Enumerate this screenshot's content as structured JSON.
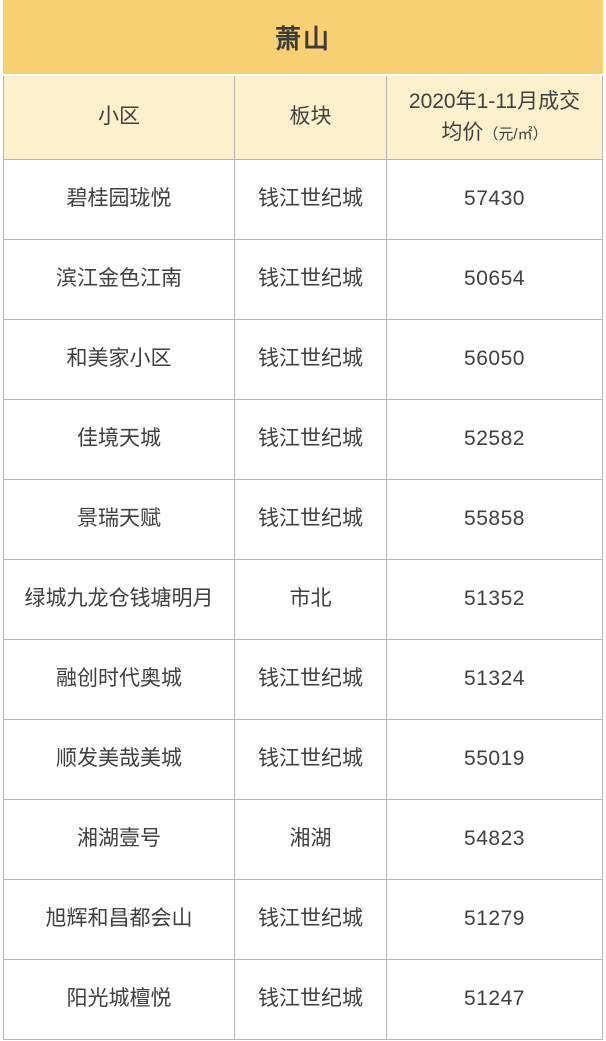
{
  "colors": {
    "title_band_bg": "#F7D073",
    "header_row_bg": "#FDF0CC",
    "row_bg": "#FFFFFF",
    "grid_border": "#B5B5B5",
    "text": "#404040"
  },
  "table": {
    "title": "萧山",
    "columns": {
      "community": "小区",
      "district": "板块",
      "price_label": "2020年1-11月成交均价",
      "price_unit": "（元/㎡）"
    },
    "rows": [
      {
        "community": "碧桂园珑悦",
        "district": "钱江世纪城",
        "price": "57430"
      },
      {
        "community": "滨江金色江南",
        "district": "钱江世纪城",
        "price": "50654"
      },
      {
        "community": "和美家小区",
        "district": "钱江世纪城",
        "price": "56050"
      },
      {
        "community": "佳境天城",
        "district": "钱江世纪城",
        "price": "52582"
      },
      {
        "community": "景瑞天赋",
        "district": "钱江世纪城",
        "price": "55858"
      },
      {
        "community": "绿城九龙仓钱塘明月",
        "district": "市北",
        "price": "51352"
      },
      {
        "community": "融创时代奥城",
        "district": "钱江世纪城",
        "price": "51324"
      },
      {
        "community": "顺发美哉美城",
        "district": "钱江世纪城",
        "price": "55019"
      },
      {
        "community": "湘湖壹号",
        "district": "湘湖",
        "price": "54823"
      },
      {
        "community": "旭辉和昌都会山",
        "district": "钱江世纪城",
        "price": "51279"
      },
      {
        "community": "阳光城檀悦",
        "district": "钱江世纪城",
        "price": "51247"
      }
    ]
  },
  "chart_data": {
    "type": "table",
    "title": "萧山",
    "columns": [
      "小区",
      "板块",
      "2020年1-11月成交均价（元/㎡）"
    ],
    "rows": [
      [
        "碧桂园珑悦",
        "钱江世纪城",
        57430
      ],
      [
        "滨江金色江南",
        "钱江世纪城",
        50654
      ],
      [
        "和美家小区",
        "钱江世纪城",
        56050
      ],
      [
        "佳境天城",
        "钱江世纪城",
        52582
      ],
      [
        "景瑞天赋",
        "钱江世纪城",
        55858
      ],
      [
        "绿城九龙仓钱塘明月",
        "市北",
        51352
      ],
      [
        "融创时代奥城",
        "钱江世纪城",
        51324
      ],
      [
        "顺发美哉美城",
        "钱江世纪城",
        55019
      ],
      [
        "湘湖壹号",
        "湘湖",
        54823
      ],
      [
        "旭辉和昌都会山",
        "钱江世纪城",
        51279
      ],
      [
        "阳光城檀悦",
        "钱江世纪城",
        51247
      ]
    ]
  }
}
